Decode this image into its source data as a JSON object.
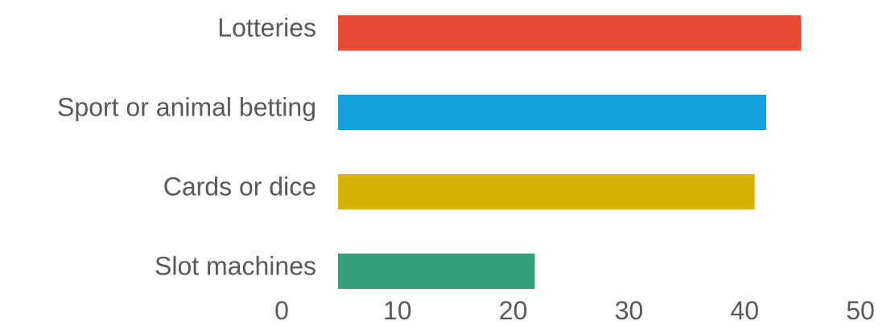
{
  "chart_data": {
    "type": "bar",
    "orientation": "horizontal",
    "categories": [
      "Lotteries",
      "Sport or animal betting",
      "Cards or dice",
      "Slot machines"
    ],
    "values": [
      40,
      37,
      36,
      17
    ],
    "colors": [
      "#E84A35",
      "#12A3DE",
      "#D5B300",
      "#34A079"
    ],
    "xlim": [
      0,
      50
    ],
    "xticks": [
      "0",
      "10",
      "20",
      "30",
      "40",
      "50"
    ],
    "grid": false,
    "legend": "none"
  }
}
